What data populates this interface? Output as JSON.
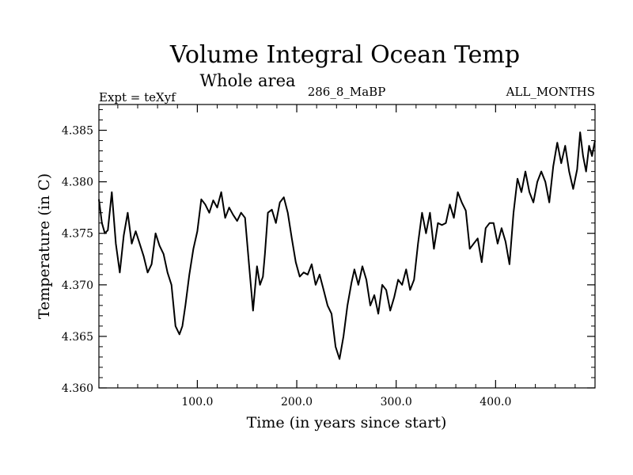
{
  "chart_data": {
    "type": "line",
    "title": "Volume Integral Ocean Temp",
    "subtitle": "Whole area",
    "header_left": "Expt = teXyf",
    "header_center": "286_8_MaBP",
    "header_right": "ALL_MONTHS",
    "xlabel": "Time (in years since start)",
    "ylabel": "Temperature (in C)",
    "xlim": [
      1,
      500
    ],
    "ylim": [
      4.36,
      4.3875
    ],
    "xticks": [
      100,
      200,
      300,
      400
    ],
    "xtick_labels": [
      "100.0",
      "200.0",
      "300.0",
      "400.0"
    ],
    "yticks": [
      4.36,
      4.365,
      4.37,
      4.375,
      4.38,
      4.385
    ],
    "ytick_labels": [
      "4.360",
      "4.365",
      "4.370",
      "4.375",
      "4.380",
      "4.385"
    ],
    "grid": false,
    "series": [
      {
        "x": [
          1,
          4,
          7,
          10,
          14,
          18,
          22,
          26,
          30,
          34,
          38,
          42,
          46,
          50,
          54,
          58,
          62,
          66,
          70,
          74,
          78,
          82,
          85,
          88,
          92,
          96,
          100,
          104,
          108,
          112,
          116,
          120,
          124,
          128,
          132,
          136,
          140,
          144,
          148,
          152,
          156,
          160,
          163,
          166,
          168,
          171,
          175,
          179,
          183,
          187,
          191,
          195,
          199,
          203,
          207,
          211,
          215,
          219,
          223,
          227,
          231,
          235,
          239,
          243,
          247,
          251,
          255,
          258,
          262,
          266,
          270,
          274,
          278,
          282,
          286,
          290,
          294,
          298,
          302,
          306,
          310,
          314,
          318,
          322,
          326,
          330,
          334,
          338,
          342,
          346,
          350,
          354,
          358,
          362,
          366,
          370,
          374,
          378,
          382,
          386,
          390,
          394,
          398,
          402,
          406,
          410,
          414,
          418,
          422,
          426,
          430,
          434,
          438,
          442,
          446,
          450,
          454,
          458,
          462,
          466,
          470,
          474,
          478,
          482,
          485,
          488,
          491,
          494,
          497,
          500
        ],
        "values": [
          4.3783,
          4.376,
          4.375,
          4.3753,
          4.379,
          4.374,
          4.3712,
          4.3748,
          4.377,
          4.374,
          4.3752,
          4.374,
          4.3728,
          4.3712,
          4.372,
          4.375,
          4.3738,
          4.373,
          4.3712,
          4.37,
          4.366,
          4.3652,
          4.366,
          4.368,
          4.371,
          4.3735,
          4.3752,
          4.3783,
          4.3778,
          4.377,
          4.3782,
          4.3775,
          4.379,
          4.3765,
          4.3775,
          4.3768,
          4.3762,
          4.377,
          4.3765,
          4.372,
          4.3675,
          4.3718,
          4.37,
          4.3708,
          4.373,
          4.377,
          4.3773,
          4.376,
          4.378,
          4.3785,
          4.377,
          4.3745,
          4.3722,
          4.3708,
          4.3712,
          4.371,
          4.372,
          4.37,
          4.371,
          4.3695,
          4.368,
          4.3672,
          4.364,
          4.3628,
          4.365,
          4.368,
          4.3702,
          4.3715,
          4.37,
          4.3718,
          4.3705,
          4.368,
          4.369,
          4.3672,
          4.37,
          4.3695,
          4.3675,
          4.3688,
          4.3705,
          4.37,
          4.3715,
          4.3695,
          4.3705,
          4.374,
          4.377,
          4.375,
          4.377,
          4.3735,
          4.376,
          4.3758,
          4.376,
          4.3778,
          4.3765,
          4.379,
          4.378,
          4.3772,
          4.3735,
          4.374,
          4.3745,
          4.3722,
          4.3755,
          4.376,
          4.376,
          4.374,
          4.3755,
          4.3742,
          4.372,
          4.377,
          4.3803,
          4.379,
          4.381,
          4.379,
          4.378,
          4.38,
          4.381,
          4.38,
          4.378,
          4.3815,
          4.3838,
          4.3818,
          4.3835,
          4.381,
          4.3793,
          4.3812,
          4.3848,
          4.3825,
          4.381,
          4.3835,
          4.3825,
          4.384
        ]
      }
    ]
  }
}
